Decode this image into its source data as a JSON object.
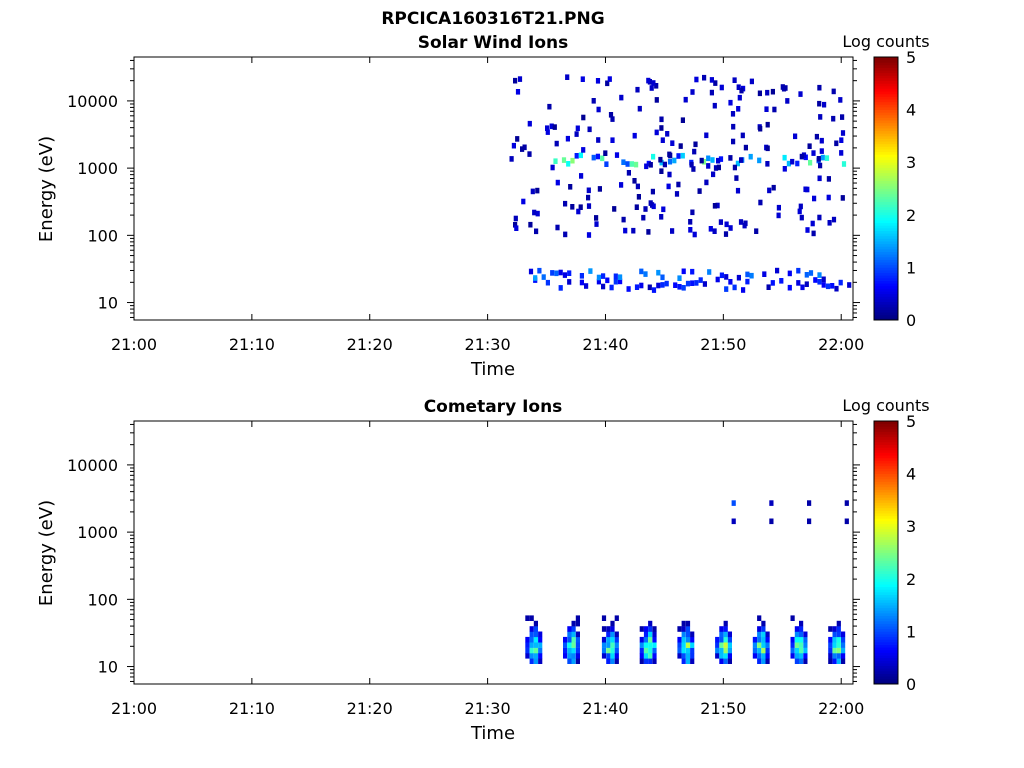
{
  "figure": {
    "title": "RPCICA160316T21.PNG"
  },
  "colorbar": {
    "label": "Log counts",
    "range": [
      0,
      5
    ],
    "ticks": [
      "0",
      "1",
      "2",
      "3",
      "4",
      "5"
    ],
    "colormap": "jet"
  },
  "chart_data": [
    {
      "type": "heatmap",
      "title": "Solar Wind Ions",
      "xlabel": "Time",
      "ylabel": "Energy (eV)",
      "x_ticks": [
        "21:00",
        "21:10",
        "21:20",
        "21:30",
        "21:40",
        "21:50",
        "22:00"
      ],
      "x_range_min": [
        0,
        61
      ],
      "y_scale": "log",
      "y_ticks": [
        "10",
        "100",
        "1000",
        "10000"
      ],
      "y_range": [
        5.5,
        45000
      ],
      "energy_bands": [
        {
          "energy": 18,
          "time_start": 33.5,
          "time_end": 61,
          "level": 0.6
        },
        {
          "energy": 25,
          "time_start": 33.5,
          "time_end": 61,
          "level": 0.9
        },
        {
          "energy": 1300,
          "time_start": 34.5,
          "time_end": 61,
          "level": 1.6
        }
      ],
      "sparse_counts": {
        "time_start": 31.8,
        "time_end": 61,
        "energy_min": 100,
        "energy_max": 25000,
        "level": 0.2
      }
    },
    {
      "type": "heatmap",
      "title": "Cometary Ions",
      "xlabel": "Time",
      "ylabel": "Energy (eV)",
      "x_ticks": [
        "21:00",
        "21:10",
        "21:20",
        "21:30",
        "21:40",
        "21:50",
        "22:00"
      ],
      "x_range_min": [
        0,
        61
      ],
      "y_scale": "log",
      "y_ticks": [
        "10",
        "100",
        "1000",
        "10000"
      ],
      "y_range": [
        5.5,
        45000
      ],
      "bursts_min": [
        33.8,
        37.0,
        40.3,
        43.5,
        46.7,
        49.9,
        53.1,
        56.3,
        59.5
      ],
      "burst_energy_range": [
        12,
        60
      ],
      "burst_peak_level": 3.1,
      "high_energy_points": [
        {
          "time": 50.7,
          "energy": 2700,
          "level": 1.0
        },
        {
          "time": 50.7,
          "energy": 1450,
          "level": 0.3
        },
        {
          "time": 53.9,
          "energy": 2700,
          "level": 0.3
        },
        {
          "time": 53.9,
          "energy": 1450,
          "level": 0.2
        },
        {
          "time": 57.1,
          "energy": 2700,
          "level": 0.2
        },
        {
          "time": 57.1,
          "energy": 1450,
          "level": 0.2
        },
        {
          "time": 60.3,
          "energy": 2700,
          "level": 0.2
        },
        {
          "time": 60.3,
          "energy": 1450,
          "level": 0.2
        }
      ]
    }
  ]
}
